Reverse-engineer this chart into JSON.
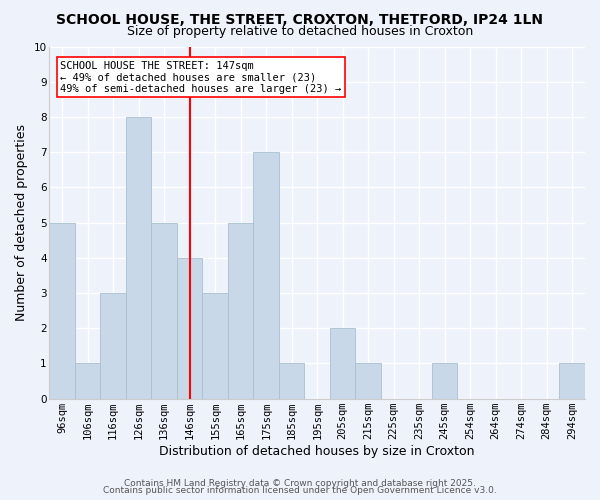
{
  "title": "SCHOOL HOUSE, THE STREET, CROXTON, THETFORD, IP24 1LN",
  "subtitle": "Size of property relative to detached houses in Croxton",
  "xlabel": "Distribution of detached houses by size in Croxton",
  "ylabel": "Number of detached properties",
  "categories": [
    "96sqm",
    "106sqm",
    "116sqm",
    "126sqm",
    "136sqm",
    "146sqm",
    "155sqm",
    "165sqm",
    "175sqm",
    "185sqm",
    "195sqm",
    "205sqm",
    "215sqm",
    "225sqm",
    "235sqm",
    "245sqm",
    "254sqm",
    "264sqm",
    "274sqm",
    "284sqm",
    "294sqm"
  ],
  "values": [
    5,
    1,
    3,
    8,
    5,
    4,
    3,
    5,
    7,
    1,
    0,
    2,
    1,
    0,
    0,
    1,
    0,
    0,
    0,
    0,
    1
  ],
  "bar_color": "#c8d8e8",
  "bar_edge_color": "#a8c0d0",
  "ylim": [
    0,
    10
  ],
  "yticks": [
    0,
    1,
    2,
    3,
    4,
    5,
    6,
    7,
    8,
    9,
    10
  ],
  "annotation_title": "SCHOOL HOUSE THE STREET: 147sqm",
  "annotation_line1": "← 49% of detached houses are smaller (23)",
  "annotation_line2": "49% of semi-detached houses are larger (23) →",
  "footer1": "Contains HM Land Registry data © Crown copyright and database right 2025.",
  "footer2": "Contains public sector information licensed under the Open Government Licence v3.0.",
  "background_color": "#eef2fb",
  "grid_color": "#ffffff",
  "title_fontsize": 10,
  "subtitle_fontsize": 9,
  "axis_label_fontsize": 9,
  "tick_fontsize": 7.5,
  "footer_fontsize": 6.5,
  "vline_index": 5.5
}
